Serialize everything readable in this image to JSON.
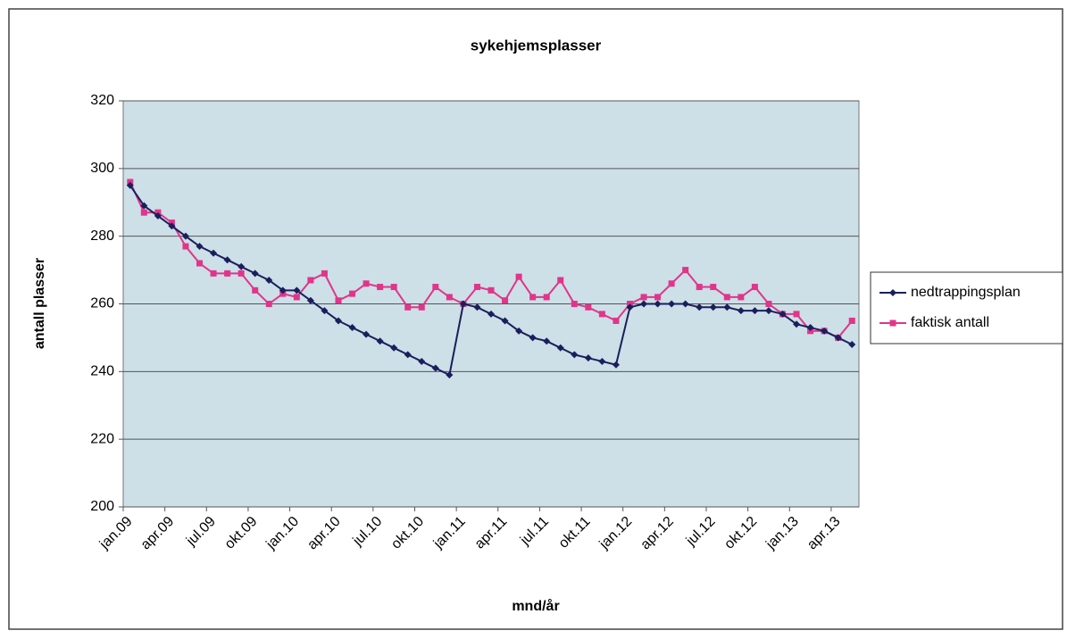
{
  "chart_data": {
    "type": "line",
    "title": "sykehjemsplasser",
    "x_label": "mnd/år",
    "y_label": "antall plasser",
    "categories": [
      "jan.09",
      null,
      null,
      "apr.09",
      null,
      null,
      "jul.09",
      null,
      null,
      "okt.09",
      null,
      null,
      "jan.10",
      null,
      null,
      "apr.10",
      null,
      null,
      "jul.10",
      null,
      null,
      "okt.10",
      null,
      null,
      "jan.11",
      null,
      null,
      "apr.11",
      null,
      null,
      "jul.11",
      null,
      null,
      "okt.11",
      null,
      null,
      "jan.12",
      null,
      null,
      "apr.12",
      null,
      null,
      "jul.12",
      null,
      null,
      "okt.12",
      null,
      null,
      "jan.13",
      null,
      null,
      "apr.13",
      null
    ],
    "series": [
      {
        "name": "nedtrappingsplan",
        "color": "#1a1f5c",
        "marker": "diamond",
        "values": [
          295,
          289,
          286,
          283,
          280,
          277,
          275,
          273,
          271,
          269,
          267,
          264,
          264,
          261,
          258,
          255,
          253,
          251,
          249,
          247,
          245,
          243,
          241,
          239,
          260,
          259,
          257,
          255,
          252,
          250,
          249,
          247,
          245,
          244,
          243,
          242,
          259,
          260,
          260,
          260,
          260,
          259,
          259,
          259,
          258,
          258,
          258,
          257,
          254,
          253,
          252,
          250,
          248
        ]
      },
      {
        "name": "faktisk antall",
        "color": "#e0358a",
        "marker": "square",
        "values": [
          296,
          287,
          287,
          284,
          277,
          272,
          269,
          269,
          269,
          264,
          260,
          263,
          262,
          267,
          269,
          261,
          263,
          266,
          265,
          265,
          259,
          259,
          265,
          262,
          260,
          265,
          264,
          261,
          268,
          262,
          262,
          267,
          260,
          259,
          257,
          255,
          260,
          262,
          262,
          266,
          270,
          265,
          265,
          262,
          262,
          265,
          260,
          257,
          257,
          252,
          252,
          250,
          255
        ]
      }
    ],
    "ylim": [
      200,
      320
    ],
    "yticks": [
      200,
      220,
      240,
      260,
      280,
      300,
      320
    ],
    "grid": true,
    "legend": "right"
  }
}
